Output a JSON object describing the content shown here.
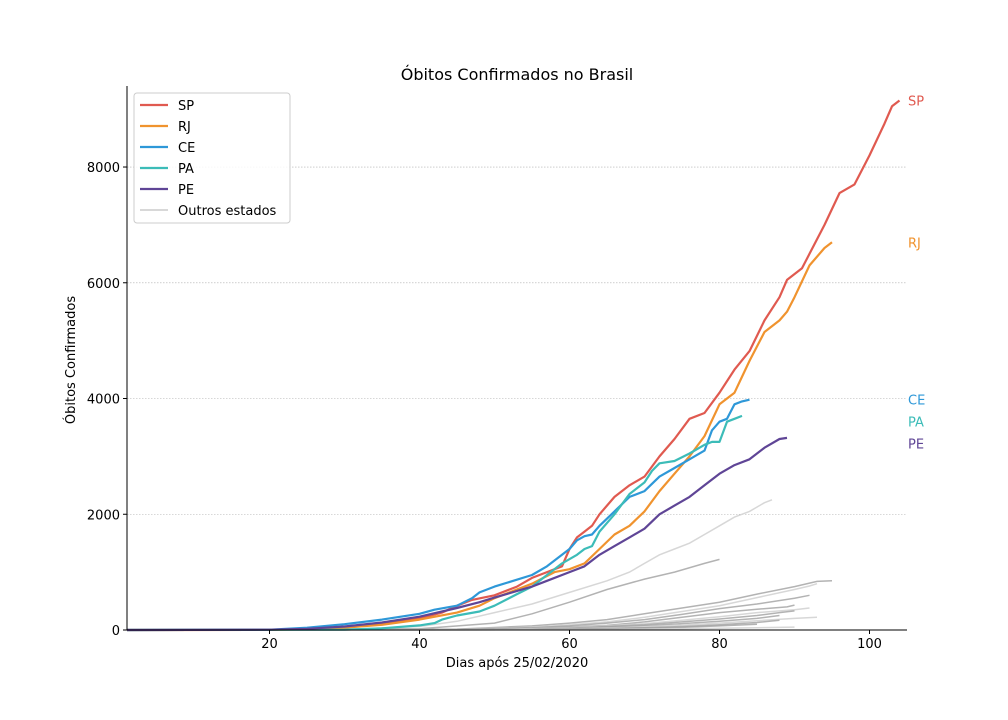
{
  "chart_data": {
    "type": "line",
    "title": "Óbitos Confirmados no Brasil",
    "xlabel": "Dias após 25/02/2020",
    "ylabel": "Óbitos Confirmados",
    "xlim": [
      1,
      105
    ],
    "ylim": [
      0,
      9400
    ],
    "xticks": [
      20,
      40,
      60,
      80,
      100
    ],
    "yticks": [
      0,
      2000,
      4000,
      6000,
      8000
    ],
    "grid": "horizontal dotted",
    "legend_placement": "top-left",
    "series": [
      {
        "name": "SP",
        "color": "#e05a50",
        "end_label": "SP",
        "points": [
          [
            1,
            0
          ],
          [
            20,
            2
          ],
          [
            25,
            20
          ],
          [
            30,
            50
          ],
          [
            35,
            110
          ],
          [
            40,
            200
          ],
          [
            43,
            300
          ],
          [
            45,
            420
          ],
          [
            47,
            520
          ],
          [
            50,
            600
          ],
          [
            53,
            750
          ],
          [
            55,
            900
          ],
          [
            57,
            1000
          ],
          [
            59,
            1100
          ],
          [
            60,
            1400
          ],
          [
            61,
            1600
          ],
          [
            62,
            1700
          ],
          [
            63,
            1800
          ],
          [
            64,
            2000
          ],
          [
            66,
            2300
          ],
          [
            68,
            2500
          ],
          [
            70,
            2650
          ],
          [
            72,
            3000
          ],
          [
            74,
            3300
          ],
          [
            76,
            3650
          ],
          [
            78,
            3750
          ],
          [
            80,
            4100
          ],
          [
            82,
            4500
          ],
          [
            84,
            4820
          ],
          [
            86,
            5350
          ],
          [
            88,
            5750
          ],
          [
            89,
            6050
          ],
          [
            91,
            6250
          ],
          [
            92,
            6500
          ],
          [
            94,
            7000
          ],
          [
            96,
            7550
          ],
          [
            98,
            7700
          ],
          [
            100,
            8200
          ],
          [
            102,
            8750
          ],
          [
            103,
            9050
          ],
          [
            104,
            9150
          ]
        ]
      },
      {
        "name": "RJ",
        "color": "#f0932e",
        "end_label": "RJ",
        "points": [
          [
            1,
            0
          ],
          [
            20,
            2
          ],
          [
            25,
            15
          ],
          [
            30,
            40
          ],
          [
            35,
            90
          ],
          [
            40,
            180
          ],
          [
            45,
            300
          ],
          [
            48,
            420
          ],
          [
            50,
            550
          ],
          [
            55,
            800
          ],
          [
            58,
            1000
          ],
          [
            60,
            1050
          ],
          [
            62,
            1150
          ],
          [
            64,
            1400
          ],
          [
            66,
            1650
          ],
          [
            68,
            1800
          ],
          [
            70,
            2050
          ],
          [
            72,
            2400
          ],
          [
            74,
            2700
          ],
          [
            76,
            3000
          ],
          [
            78,
            3350
          ],
          [
            80,
            3900
          ],
          [
            82,
            4100
          ],
          [
            84,
            4650
          ],
          [
            86,
            5150
          ],
          [
            88,
            5350
          ],
          [
            89,
            5500
          ],
          [
            90,
            5750
          ],
          [
            92,
            6300
          ],
          [
            94,
            6600
          ],
          [
            95,
            6700
          ]
        ]
      },
      {
        "name": "CE",
        "color": "#2e98d8",
        "end_label": "CE",
        "points": [
          [
            1,
            0
          ],
          [
            20,
            5
          ],
          [
            25,
            40
          ],
          [
            30,
            100
          ],
          [
            35,
            180
          ],
          [
            40,
            280
          ],
          [
            42,
            350
          ],
          [
            45,
            420
          ],
          [
            47,
            550
          ],
          [
            48,
            650
          ],
          [
            50,
            750
          ],
          [
            55,
            950
          ],
          [
            57,
            1100
          ],
          [
            59,
            1300
          ],
          [
            60,
            1400
          ],
          [
            61,
            1550
          ],
          [
            62,
            1620
          ],
          [
            63,
            1650
          ],
          [
            64,
            1800
          ],
          [
            66,
            2050
          ],
          [
            68,
            2300
          ],
          [
            70,
            2400
          ],
          [
            72,
            2650
          ],
          [
            74,
            2800
          ],
          [
            76,
            2950
          ],
          [
            78,
            3100
          ],
          [
            79,
            3450
          ],
          [
            80,
            3600
          ],
          [
            81,
            3650
          ],
          [
            82,
            3900
          ],
          [
            83,
            3950
          ],
          [
            84,
            3980
          ]
        ]
      },
      {
        "name": "PA",
        "color": "#3cbcb8",
        "end_label": "PA",
        "points": [
          [
            1,
            0
          ],
          [
            30,
            5
          ],
          [
            35,
            30
          ],
          [
            40,
            80
          ],
          [
            42,
            120
          ],
          [
            43,
            180
          ],
          [
            45,
            250
          ],
          [
            48,
            320
          ],
          [
            50,
            420
          ],
          [
            53,
            620
          ],
          [
            55,
            750
          ],
          [
            57,
            950
          ],
          [
            59,
            1150
          ],
          [
            61,
            1300
          ],
          [
            62,
            1400
          ],
          [
            63,
            1450
          ],
          [
            64,
            1700
          ],
          [
            66,
            2000
          ],
          [
            68,
            2350
          ],
          [
            70,
            2550
          ],
          [
            71,
            2750
          ],
          [
            72,
            2880
          ],
          [
            74,
            2920
          ],
          [
            76,
            3050
          ],
          [
            78,
            3200
          ],
          [
            79,
            3250
          ],
          [
            80,
            3250
          ],
          [
            81,
            3600
          ],
          [
            82,
            3650
          ],
          [
            83,
            3700
          ]
        ]
      },
      {
        "name": "PE",
        "color": "#5f4596",
        "end_label": "PE",
        "points": [
          [
            1,
            0
          ],
          [
            20,
            5
          ],
          [
            25,
            20
          ],
          [
            30,
            60
          ],
          [
            35,
            130
          ],
          [
            40,
            230
          ],
          [
            45,
            380
          ],
          [
            48,
            480
          ],
          [
            50,
            560
          ],
          [
            55,
            750
          ],
          [
            57,
            850
          ],
          [
            60,
            1000
          ],
          [
            62,
            1100
          ],
          [
            64,
            1300
          ],
          [
            66,
            1450
          ],
          [
            68,
            1600
          ],
          [
            70,
            1750
          ],
          [
            72,
            2000
          ],
          [
            74,
            2150
          ],
          [
            76,
            2300
          ],
          [
            78,
            2500
          ],
          [
            80,
            2700
          ],
          [
            82,
            2850
          ],
          [
            84,
            2950
          ],
          [
            86,
            3150
          ],
          [
            88,
            3300
          ],
          [
            89,
            3320
          ]
        ]
      },
      {
        "name": "Outros estados",
        "color": "#cccccc",
        "group": true,
        "lines": [
          [
            [
              1,
              0
            ],
            [
              30,
              10
            ],
            [
              40,
              60
            ],
            [
              45,
              150
            ],
            [
              50,
              300
            ],
            [
              55,
              450
            ],
            [
              60,
              650
            ],
            [
              65,
              850
            ],
            [
              68,
              1000
            ],
            [
              70,
              1150
            ],
            [
              72,
              1300
            ],
            [
              74,
              1400
            ],
            [
              76,
              1500
            ],
            [
              78,
              1650
            ],
            [
              80,
              1800
            ],
            [
              82,
              1950
            ],
            [
              84,
              2050
            ],
            [
              86,
              2200
            ],
            [
              87,
              2250
            ]
          ],
          [
            [
              1,
              0
            ],
            [
              40,
              20
            ],
            [
              50,
              120
            ],
            [
              55,
              280
            ],
            [
              60,
              480
            ],
            [
              65,
              700
            ],
            [
              70,
              880
            ],
            [
              74,
              1000
            ],
            [
              78,
              1150
            ],
            [
              80,
              1220
            ]
          ],
          [
            [
              1,
              0
            ],
            [
              45,
              15
            ],
            [
              55,
              70
            ],
            [
              60,
              120
            ],
            [
              65,
              180
            ],
            [
              70,
              280
            ],
            [
              75,
              380
            ],
            [
              80,
              480
            ],
            [
              85,
              620
            ],
            [
              90,
              750
            ],
            [
              93,
              840
            ],
            [
              95,
              850
            ]
          ],
          [
            [
              1,
              0
            ],
            [
              45,
              10
            ],
            [
              55,
              50
            ],
            [
              60,
              90
            ],
            [
              65,
              140
            ],
            [
              70,
              220
            ],
            [
              75,
              320
            ],
            [
              80,
              420
            ],
            [
              85,
              560
            ],
            [
              90,
              700
            ],
            [
              92,
              760
            ],
            [
              93,
              800
            ]
          ],
          [
            [
              1,
              0
            ],
            [
              45,
              10
            ],
            [
              55,
              40
            ],
            [
              60,
              70
            ],
            [
              65,
              120
            ],
            [
              70,
              180
            ],
            [
              75,
              270
            ],
            [
              80,
              370
            ],
            [
              85,
              450
            ],
            [
              90,
              550
            ],
            [
              92,
              600
            ]
          ],
          [
            [
              1,
              0
            ],
            [
              50,
              10
            ],
            [
              60,
              50
            ],
            [
              65,
              80
            ],
            [
              70,
              140
            ],
            [
              75,
              220
            ],
            [
              80,
              300
            ],
            [
              85,
              360
            ],
            [
              89,
              400
            ],
            [
              90,
              430
            ]
          ],
          [
            [
              1,
              0
            ],
            [
              50,
              8
            ],
            [
              60,
              40
            ],
            [
              65,
              70
            ],
            [
              70,
              110
            ],
            [
              75,
              170
            ],
            [
              80,
              230
            ],
            [
              85,
              300
            ],
            [
              90,
              350
            ],
            [
              92,
              380
            ]
          ],
          [
            [
              1,
              0
            ],
            [
              50,
              5
            ],
            [
              60,
              30
            ],
            [
              65,
              60
            ],
            [
              70,
              90
            ],
            [
              75,
              140
            ],
            [
              80,
              190
            ],
            [
              85,
              250
            ],
            [
              88,
              300
            ],
            [
              90,
              330
            ]
          ],
          [
            [
              1,
              0
            ],
            [
              50,
              5
            ],
            [
              60,
              25
            ],
            [
              65,
              45
            ],
            [
              70,
              70
            ],
            [
              75,
              110
            ],
            [
              80,
              150
            ],
            [
              85,
              200
            ],
            [
              88,
              250
            ]
          ],
          [
            [
              1,
              0
            ],
            [
              50,
              3
            ],
            [
              60,
              20
            ],
            [
              65,
              35
            ],
            [
              70,
              55
            ],
            [
              75,
              85
            ],
            [
              80,
              120
            ],
            [
              85,
              160
            ],
            [
              90,
              200
            ],
            [
              93,
              220
            ]
          ],
          [
            [
              1,
              0
            ],
            [
              55,
              5
            ],
            [
              60,
              15
            ],
            [
              65,
              25
            ],
            [
              70,
              40
            ],
            [
              75,
              60
            ],
            [
              80,
              90
            ],
            [
              85,
              130
            ],
            [
              88,
              170
            ]
          ],
          [
            [
              1,
              0
            ],
            [
              55,
              3
            ],
            [
              60,
              10
            ],
            [
              65,
              20
            ],
            [
              70,
              30
            ],
            [
              75,
              45
            ],
            [
              80,
              70
            ],
            [
              85,
              100
            ]
          ],
          [
            [
              1,
              0
            ],
            [
              60,
              5
            ],
            [
              65,
              10
            ],
            [
              70,
              15
            ],
            [
              75,
              22
            ],
            [
              80,
              30
            ],
            [
              85,
              40
            ],
            [
              90,
              50
            ]
          ]
        ]
      }
    ]
  }
}
